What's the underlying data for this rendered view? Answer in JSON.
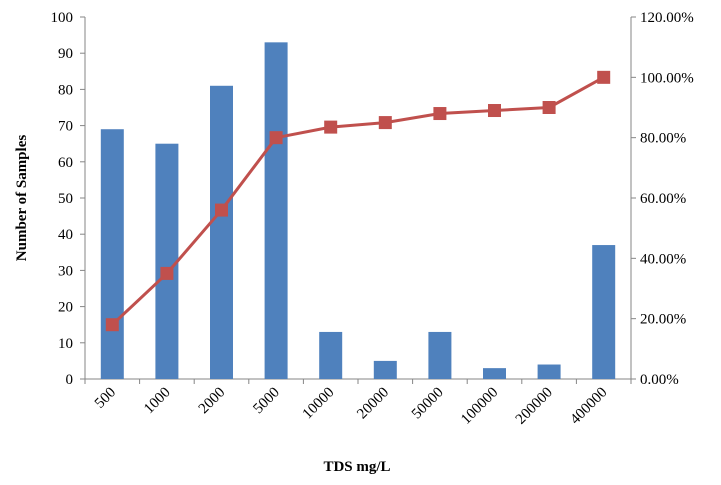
{
  "chart_data": {
    "type": "bar",
    "title": "",
    "xlabel": "TDS mg/L",
    "ylabel": "Number of Samples",
    "y2label": "",
    "categories": [
      "500",
      "1000",
      "2000",
      "5000",
      "10000",
      "20000",
      "50000",
      "100000",
      "200000",
      "400000"
    ],
    "series": [
      {
        "type": "bar",
        "axis": "left",
        "color": "#4F81BD",
        "values": [
          69,
          65,
          81,
          93,
          13,
          5,
          13,
          3,
          4,
          37
        ]
      },
      {
        "type": "line",
        "axis": "right",
        "color": "#C0504D",
        "marker": "square",
        "values": [
          0.18,
          0.35,
          0.56,
          0.8,
          0.835,
          0.85,
          0.88,
          0.89,
          0.9,
          1.0
        ]
      }
    ],
    "ylim": [
      0,
      100
    ],
    "yticks": [
      "0",
      "10",
      "20",
      "30",
      "40",
      "50",
      "60",
      "70",
      "80",
      "90",
      "100"
    ],
    "y2lim": [
      0,
      1.2
    ],
    "y2ticks": [
      "0.00%",
      "20.00%",
      "40.00%",
      "60.00%",
      "80.00%",
      "100.00%",
      "120.00%"
    ],
    "grid": false,
    "legend": "none"
  }
}
